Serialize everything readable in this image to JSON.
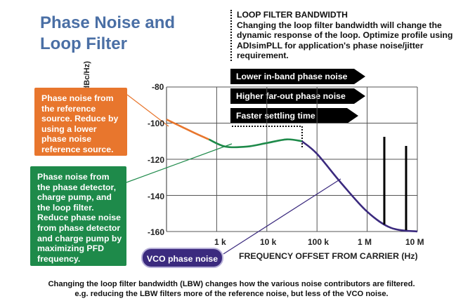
{
  "title": {
    "line1": "Phase Noise and",
    "line2": "Loop Filter"
  },
  "loop_filter": {
    "heading": "LOOP FILTER BANDWIDTH",
    "text": "Changing the loop filter bandwidth will change the dynamic response of the loop. Optimize profile using ADIsimPLL for application's phase noise/jitter requirement."
  },
  "arrows": [
    "Lower in-band phase noise",
    "Higher far-out phase noise",
    "Faster settling time"
  ],
  "callouts": {
    "reference": "Phase noise from the reference source. Reduce by using a lower phase noise reference source.",
    "detector": "Phase noise from the phase detector, charge pump, and the loop filter. Reduce phase noise from phase detector and charge pump by maximizing PFD frequency.",
    "vco": "VCO phase noise"
  },
  "axes": {
    "ylabel": "PHASE NOISE (dBc/Hz)",
    "xlabel": "FREQUENCY OFFSET FROM CARRIER (Hz)",
    "yticks": [
      "-80",
      "-100",
      "-120",
      "-140",
      "-160"
    ],
    "xticks": [
      "1 k",
      "10 k",
      "100 k",
      "1 M",
      "10 M"
    ]
  },
  "chart_data": {
    "type": "line",
    "xlabel": "FREQUENCY OFFSET FROM CARRIER (Hz)",
    "ylabel": "PHASE NOISE (dBc/Hz)",
    "xscale": "log",
    "xlim": [
      100,
      10000000
    ],
    "ylim": [
      -160,
      -80
    ],
    "series": [
      {
        "name": "Reference noise",
        "color": "#e8762d",
        "x": [
          100,
          200,
          400,
          700
        ],
        "y": [
          -98,
          -102,
          -106,
          -109
        ]
      },
      {
        "name": "Phase detector / charge pump / loop filter noise",
        "color": "#1e8a4a",
        "x": [
          700,
          1500,
          4000,
          10000,
          25000,
          50000
        ],
        "y": [
          -109,
          -113,
          -113,
          -111,
          -109,
          -110
        ]
      },
      {
        "name": "VCO noise",
        "color": "#3b2a7e",
        "x": [
          50000,
          100000,
          300000,
          1000000,
          3000000,
          10000000
        ],
        "y": [
          -110,
          -117,
          -133,
          -149,
          -158,
          -160
        ]
      }
    ]
  },
  "caption": {
    "line1": "Changing the loop filter bandwidth (LBW) changes how the various noise contributors are filtered.",
    "line2": "e.g. reducing the LBW filters more of the reference noise, but less of the VCO noise."
  },
  "colors": {
    "title": "#4a6fa5",
    "orange": "#e8762d",
    "green": "#1e8a4a",
    "purple": "#3b2a7e"
  }
}
